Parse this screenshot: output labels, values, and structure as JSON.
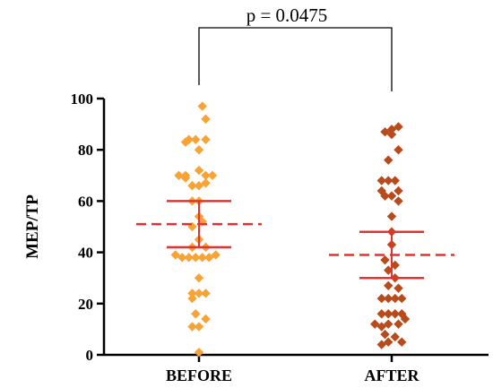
{
  "chart_data": {
    "type": "scatter",
    "ylabel": "MEP/TP",
    "ylim": [
      0,
      100
    ],
    "yticks": [
      "0",
      "20",
      "40",
      "60",
      "80",
      "100"
    ],
    "categories": [
      "BEFORE",
      "AFTER"
    ],
    "annotation": "p = 0.0475",
    "colors": {
      "before_marker": "#F7A336",
      "after_marker": "#B84A1C",
      "stat_lines": "#E8312E"
    },
    "series": [
      {
        "category": "BEFORE",
        "mean": 51,
        "ci": [
          42,
          60
        ],
        "points": [
          {
            "o": 0.5,
            "y": 97
          },
          {
            "o": 1.0,
            "y": 92
          },
          {
            "o": -1.5,
            "y": 84
          },
          {
            "o": -0.5,
            "y": 84
          },
          {
            "o": 1.0,
            "y": 84
          },
          {
            "o": -2.0,
            "y": 83
          },
          {
            "o": 0.0,
            "y": 80
          },
          {
            "o": 0.0,
            "y": 72
          },
          {
            "o": -3.0,
            "y": 70
          },
          {
            "o": -2.0,
            "y": 70
          },
          {
            "o": 1.0,
            "y": 70
          },
          {
            "o": 2.0,
            "y": 70
          },
          {
            "o": -2.0,
            "y": 69
          },
          {
            "o": -1.0,
            "y": 66
          },
          {
            "o": 0.0,
            "y": 66
          },
          {
            "o": 1.0,
            "y": 67
          },
          {
            "o": -1.0,
            "y": 60
          },
          {
            "o": 0.0,
            "y": 60
          },
          {
            "o": 0.0,
            "y": 54
          },
          {
            "o": 0.5,
            "y": 52
          },
          {
            "o": -1.0,
            "y": 50
          },
          {
            "o": 0.0,
            "y": 45
          },
          {
            "o": 1.0,
            "y": 42
          },
          {
            "o": -1.0,
            "y": 42
          },
          {
            "o": -3.5,
            "y": 39
          },
          {
            "o": -2.5,
            "y": 38
          },
          {
            "o": -1.5,
            "y": 38
          },
          {
            "o": -0.5,
            "y": 38
          },
          {
            "o": 0.5,
            "y": 38
          },
          {
            "o": 1.5,
            "y": 38
          },
          {
            "o": 2.5,
            "y": 39
          },
          {
            "o": 0.0,
            "y": 30
          },
          {
            "o": -1.0,
            "y": 24
          },
          {
            "o": 0.0,
            "y": 24
          },
          {
            "o": 1.0,
            "y": 24
          },
          {
            "o": -1.0,
            "y": 22
          },
          {
            "o": -0.5,
            "y": 16
          },
          {
            "o": 1.0,
            "y": 14
          },
          {
            "o": -1.0,
            "y": 11
          },
          {
            "o": 0.0,
            "y": 11
          },
          {
            "o": 0.0,
            "y": 1
          }
        ]
      },
      {
        "category": "AFTER",
        "mean": 39,
        "ci": [
          30,
          48
        ],
        "points": [
          {
            "o": 0.0,
            "y": 88
          },
          {
            "o": 1.0,
            "y": 89
          },
          {
            "o": -1.0,
            "y": 87
          },
          {
            "o": 0.0,
            "y": 86
          },
          {
            "o": 1.0,
            "y": 80
          },
          {
            "o": -0.5,
            "y": 76
          },
          {
            "o": -1.5,
            "y": 68
          },
          {
            "o": -0.5,
            "y": 68
          },
          {
            "o": 0.5,
            "y": 68
          },
          {
            "o": -1.5,
            "y": 64
          },
          {
            "o": 1.0,
            "y": 64
          },
          {
            "o": -1.0,
            "y": 62
          },
          {
            "o": 0.0,
            "y": 62
          },
          {
            "o": 1.0,
            "y": 60
          },
          {
            "o": 0.0,
            "y": 54
          },
          {
            "o": 0.0,
            "y": 48
          },
          {
            "o": 0.0,
            "y": 43
          },
          {
            "o": -1.0,
            "y": 37
          },
          {
            "o": 0.5,
            "y": 35
          },
          {
            "o": -0.5,
            "y": 33
          },
          {
            "o": 0.5,
            "y": 30
          },
          {
            "o": -0.5,
            "y": 27
          },
          {
            "o": 1.0,
            "y": 26
          },
          {
            "o": -1.5,
            "y": 22
          },
          {
            "o": -0.5,
            "y": 22
          },
          {
            "o": 0.5,
            "y": 22
          },
          {
            "o": 1.5,
            "y": 22
          },
          {
            "o": -1.5,
            "y": 16
          },
          {
            "o": -0.5,
            "y": 16
          },
          {
            "o": 0.5,
            "y": 16
          },
          {
            "o": 1.5,
            "y": 16
          },
          {
            "o": -2.5,
            "y": 12
          },
          {
            "o": -1.5,
            "y": 11
          },
          {
            "o": -0.5,
            "y": 12
          },
          {
            "o": 1.0,
            "y": 12
          },
          {
            "o": 2.0,
            "y": 14
          },
          {
            "o": -1.0,
            "y": 8
          },
          {
            "o": 0.5,
            "y": 7
          },
          {
            "o": 1.5,
            "y": 5
          },
          {
            "o": -0.5,
            "y": 5
          },
          {
            "o": -1.5,
            "y": 4
          }
        ]
      }
    ]
  }
}
